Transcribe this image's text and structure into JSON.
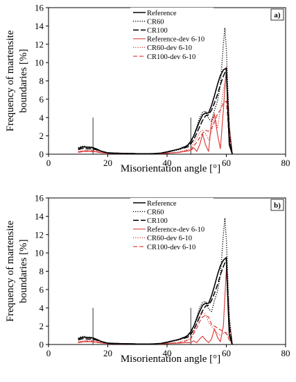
{
  "chart_data": [
    {
      "type": "line",
      "panel_label": "a)",
      "xlabel": "Misorientation angle [°]",
      "ylabel": "Frequency of martensite boundaries [%]",
      "ylabel_lines": [
        "Frequency of martensite",
        "boundaries [%]"
      ],
      "xlim": [
        0,
        80
      ],
      "ylim": [
        0,
        16
      ],
      "xticks": [
        0,
        20,
        40,
        60,
        80
      ],
      "yticks": [
        0,
        2,
        4,
        6,
        8,
        10,
        12,
        14,
        16
      ],
      "grid": false,
      "legend": "top-center",
      "reference_lines": [
        {
          "x": 15,
          "y": [
            0,
            4
          ]
        },
        {
          "x": 48,
          "y": [
            0,
            4
          ]
        }
      ],
      "series": [
        {
          "name": "Reference",
          "color": "#000000",
          "dash": "solid",
          "width": 1.6,
          "x": [
            10,
            11,
            12,
            13,
            14,
            15,
            16,
            17,
            18,
            20,
            22,
            24,
            26,
            28,
            30,
            32,
            34,
            36,
            38,
            40,
            42,
            44,
            45,
            46,
            47,
            48,
            49,
            50,
            51,
            52,
            53,
            54,
            55,
            56,
            57,
            58,
            59,
            60,
            60.5,
            61,
            62
          ],
          "y": [
            0.6,
            0.75,
            0.8,
            0.75,
            0.75,
            0.7,
            0.6,
            0.45,
            0.3,
            0.15,
            0.12,
            0.1,
            0.08,
            0.08,
            0.05,
            0.05,
            0.05,
            0.07,
            0.12,
            0.25,
            0.4,
            0.55,
            0.7,
            0.8,
            1.0,
            1.4,
            2.0,
            2.8,
            3.6,
            4.3,
            4.5,
            4.5,
            5.3,
            6.4,
            7.6,
            8.6,
            9.2,
            9.4,
            5.0,
            1.0,
            0.0
          ]
        },
        {
          "name": "CR60",
          "color": "#000000",
          "dash": "dot",
          "width": 1.4,
          "x": [
            10,
            11,
            12,
            13,
            14,
            15,
            16,
            17,
            18,
            20,
            22,
            24,
            26,
            28,
            30,
            32,
            34,
            36,
            38,
            40,
            42,
            44,
            46,
            47,
            48,
            49,
            50,
            51,
            52,
            53,
            54,
            55,
            56,
            57,
            58,
            59,
            59.5,
            60,
            61,
            62
          ],
          "y": [
            0.7,
            0.85,
            0.9,
            0.8,
            0.8,
            0.75,
            0.6,
            0.45,
            0.3,
            0.12,
            0.1,
            0.08,
            0.06,
            0.06,
            0.05,
            0.05,
            0.05,
            0.07,
            0.1,
            0.2,
            0.35,
            0.5,
            0.7,
            0.9,
            1.3,
            2.0,
            3.0,
            4.0,
            4.6,
            4.7,
            3.9,
            3.6,
            4.8,
            5.8,
            7.5,
            12.0,
            13.8,
            11.5,
            3.0,
            0.0
          ]
        },
        {
          "name": "CR100",
          "color": "#000000",
          "dash": "longdash",
          "width": 1.5,
          "x": [
            10,
            11,
            12,
            13,
            14,
            15,
            16,
            17,
            18,
            20,
            22,
            24,
            26,
            28,
            30,
            32,
            34,
            36,
            38,
            40,
            42,
            44,
            46,
            47,
            48,
            49,
            50,
            51,
            52,
            53,
            54,
            55,
            56,
            57,
            58,
            59,
            60,
            61,
            62
          ],
          "y": [
            0.5,
            0.6,
            0.65,
            0.6,
            0.6,
            0.55,
            0.5,
            0.4,
            0.3,
            0.15,
            0.12,
            0.1,
            0.08,
            0.07,
            0.05,
            0.05,
            0.05,
            0.07,
            0.12,
            0.25,
            0.4,
            0.55,
            0.7,
            0.8,
            1.1,
            1.6,
            2.3,
            3.0,
            3.7,
            4.2,
            4.3,
            4.8,
            5.6,
            6.5,
            7.6,
            8.5,
            9.3,
            2.0,
            0.0
          ]
        },
        {
          "name": "Reference-dev 6-10",
          "color": "#d9433f",
          "dash": "solid",
          "width": 1.2,
          "x": [
            10,
            12,
            14,
            16,
            18,
            20,
            26,
            30,
            36,
            40,
            44,
            46,
            48,
            49,
            50,
            51,
            52,
            53,
            54,
            55,
            56,
            57,
            58,
            59,
            60,
            61,
            62
          ],
          "y": [
            0.2,
            0.3,
            0.3,
            0.25,
            0.15,
            0.1,
            0.05,
            0.03,
            0.03,
            0.1,
            0.2,
            0.3,
            0.4,
            0.7,
            0.3,
            1.0,
            2.2,
            1.0,
            0.3,
            3.6,
            4.3,
            2.2,
            0.6,
            4.8,
            9.5,
            3.0,
            0.0
          ]
        },
        {
          "name": "CR60-dev 6-10",
          "color": "#d9433f",
          "dash": "dot",
          "width": 1.3,
          "x": [
            10,
            12,
            14,
            16,
            18,
            20,
            26,
            30,
            36,
            40,
            44,
            46,
            48,
            49,
            50,
            51,
            52,
            53,
            54,
            55,
            56,
            57,
            58,
            59,
            60,
            61,
            62
          ],
          "y": [
            0.3,
            0.4,
            0.45,
            0.35,
            0.2,
            0.1,
            0.05,
            0.03,
            0.03,
            0.1,
            0.25,
            0.4,
            0.6,
            1.2,
            1.8,
            2.4,
            2.6,
            2.2,
            1.6,
            2.4,
            4.4,
            2.8,
            4.8,
            7.0,
            8.6,
            2.0,
            0.0
          ]
        },
        {
          "name": "CR100-dev 6-10",
          "color": "#d9433f",
          "dash": "dash",
          "width": 1.3,
          "x": [
            10,
            12,
            14,
            16,
            18,
            20,
            26,
            30,
            36,
            40,
            44,
            46,
            48,
            49,
            50,
            51,
            52,
            53,
            54,
            55,
            56,
            57,
            58,
            59,
            60,
            61,
            62
          ],
          "y": [
            0.25,
            0.35,
            0.4,
            0.3,
            0.2,
            0.1,
            0.05,
            0.03,
            0.03,
            0.1,
            0.2,
            0.35,
            0.5,
            0.9,
            1.3,
            1.8,
            2.3,
            2.6,
            2.5,
            2.8,
            3.5,
            4.4,
            4.8,
            5.6,
            5.8,
            1.5,
            0.0
          ]
        }
      ]
    },
    {
      "type": "line",
      "panel_label": "b)",
      "xlabel": "Misorientation angle [°]",
      "ylabel": "Frequency of martensite boundaries [%]",
      "ylabel_lines": [
        "Frequency of martensite",
        "boundaries [%]"
      ],
      "xlim": [
        0,
        80
      ],
      "ylim": [
        0,
        16
      ],
      "xticks": [
        0,
        20,
        40,
        60,
        80
      ],
      "yticks": [
        0,
        2,
        4,
        6,
        8,
        10,
        12,
        14,
        16
      ],
      "grid": false,
      "legend": "top-center",
      "reference_lines": [
        {
          "x": 15,
          "y": [
            0,
            4
          ]
        },
        {
          "x": 48,
          "y": [
            0,
            4
          ]
        }
      ],
      "series": [
        {
          "name": "Reference",
          "color": "#000000",
          "dash": "solid",
          "width": 1.6,
          "x": [
            10,
            11,
            12,
            13,
            14,
            15,
            16,
            17,
            18,
            20,
            22,
            24,
            26,
            28,
            30,
            32,
            34,
            36,
            38,
            40,
            42,
            44,
            45,
            46,
            47,
            48,
            49,
            50,
            51,
            52,
            53,
            54,
            55,
            56,
            57,
            58,
            59,
            60,
            60.5,
            61,
            62
          ],
          "y": [
            0.6,
            0.75,
            0.8,
            0.75,
            0.75,
            0.7,
            0.6,
            0.45,
            0.3,
            0.15,
            0.12,
            0.1,
            0.08,
            0.08,
            0.05,
            0.05,
            0.05,
            0.07,
            0.12,
            0.25,
            0.4,
            0.55,
            0.7,
            0.8,
            1.0,
            1.4,
            2.0,
            2.8,
            3.6,
            4.3,
            4.5,
            4.5,
            5.3,
            6.4,
            7.6,
            8.6,
            9.2,
            9.5,
            5.0,
            1.0,
            0.0
          ]
        },
        {
          "name": "CR60",
          "color": "#000000",
          "dash": "dot",
          "width": 1.4,
          "x": [
            10,
            11,
            12,
            13,
            14,
            15,
            16,
            17,
            18,
            20,
            22,
            24,
            26,
            28,
            30,
            32,
            34,
            36,
            38,
            40,
            42,
            44,
            46,
            47,
            48,
            49,
            50,
            51,
            52,
            53,
            54,
            55,
            56,
            57,
            58,
            59,
            59.5,
            60,
            61,
            62
          ],
          "y": [
            0.7,
            0.85,
            0.9,
            0.8,
            0.8,
            0.75,
            0.6,
            0.45,
            0.3,
            0.12,
            0.1,
            0.08,
            0.06,
            0.06,
            0.05,
            0.05,
            0.05,
            0.07,
            0.1,
            0.2,
            0.35,
            0.5,
            0.7,
            0.9,
            1.3,
            2.0,
            3.0,
            4.0,
            4.6,
            4.7,
            3.9,
            3.6,
            4.8,
            5.8,
            7.5,
            12.0,
            13.8,
            11.5,
            3.0,
            0.0
          ]
        },
        {
          "name": "CR100",
          "color": "#000000",
          "dash": "longdash",
          "width": 1.5,
          "x": [
            10,
            11,
            12,
            13,
            14,
            15,
            16,
            17,
            18,
            20,
            22,
            24,
            26,
            28,
            30,
            32,
            34,
            36,
            38,
            40,
            42,
            44,
            46,
            47,
            48,
            49,
            50,
            51,
            52,
            53,
            54,
            55,
            56,
            57,
            58,
            59,
            60,
            61,
            62
          ],
          "y": [
            0.5,
            0.6,
            0.65,
            0.6,
            0.6,
            0.55,
            0.5,
            0.4,
            0.3,
            0.15,
            0.12,
            0.1,
            0.08,
            0.07,
            0.05,
            0.05,
            0.05,
            0.07,
            0.12,
            0.25,
            0.4,
            0.55,
            0.7,
            0.8,
            1.1,
            1.6,
            2.3,
            3.0,
            3.7,
            4.2,
            4.3,
            4.8,
            5.6,
            6.5,
            7.6,
            8.5,
            9.3,
            2.0,
            0.0
          ]
        },
        {
          "name": "Reference-dev 6-10",
          "color": "#d9433f",
          "dash": "solid",
          "width": 1.2,
          "x": [
            10,
            12,
            14,
            16,
            18,
            20,
            26,
            30,
            36,
            40,
            44,
            46,
            48,
            49,
            50,
            51,
            52,
            53,
            54,
            55,
            56,
            57,
            58,
            59,
            60,
            61,
            62
          ],
          "y": [
            0.2,
            0.3,
            0.3,
            0.25,
            0.15,
            0.1,
            0.05,
            0.03,
            0.03,
            0.1,
            0.15,
            0.2,
            0.2,
            0.4,
            0.2,
            0.6,
            0.9,
            0.5,
            0.2,
            0.6,
            1.7,
            0.8,
            0.3,
            2.0,
            8.2,
            2.5,
            0.0
          ]
        },
        {
          "name": "CR60-dev 6-10",
          "color": "#d9433f",
          "dash": "dot",
          "width": 1.3,
          "x": [
            10,
            12,
            14,
            16,
            18,
            20,
            26,
            30,
            36,
            40,
            44,
            46,
            48,
            49,
            50,
            51,
            52,
            53,
            54,
            55,
            56,
            57,
            58,
            59,
            60,
            61,
            62
          ],
          "y": [
            0.3,
            0.4,
            0.45,
            0.35,
            0.2,
            0.1,
            0.05,
            0.03,
            0.03,
            0.1,
            0.25,
            0.4,
            0.7,
            1.4,
            2.2,
            3.0,
            3.5,
            3.3,
            2.4,
            2.0,
            1.6,
            1.2,
            1.0,
            1.2,
            1.4,
            0.6,
            0.0
          ]
        },
        {
          "name": "CR100-dev 6-10",
          "color": "#d9433f",
          "dash": "dash",
          "width": 1.3,
          "x": [
            10,
            12,
            14,
            16,
            18,
            20,
            26,
            30,
            36,
            40,
            44,
            46,
            48,
            49,
            50,
            51,
            52,
            53,
            54,
            55,
            56,
            57,
            58,
            59,
            60,
            61,
            62
          ],
          "y": [
            0.25,
            0.35,
            0.4,
            0.3,
            0.2,
            0.1,
            0.05,
            0.03,
            0.03,
            0.1,
            0.2,
            0.35,
            0.6,
            1.2,
            1.8,
            2.5,
            3.0,
            3.2,
            3.0,
            2.2,
            2.0,
            1.8,
            1.6,
            1.4,
            1.2,
            0.5,
            0.0
          ]
        }
      ]
    }
  ]
}
